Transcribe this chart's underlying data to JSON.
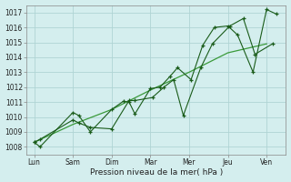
{
  "xlabel": "Pression niveau de la mer( hPa )",
  "background_color": "#d4eeee",
  "plot_bg_color": "#d4eeee",
  "grid_color": "#b0d4d4",
  "ylim": [
    1007.5,
    1017.5
  ],
  "yticks": [
    1008,
    1009,
    1010,
    1011,
    1012,
    1013,
    1014,
    1015,
    1016,
    1017
  ],
  "xtick_labels": [
    "Lun",
    "Sam",
    "Dim",
    "Mar",
    "Mer",
    "Jeu",
    "Ven"
  ],
  "xtick_positions": [
    0,
    1,
    2,
    3,
    4,
    5,
    6
  ],
  "line_color1": "#1a5c1a",
  "line_color2": "#1a5c1a",
  "line_color3": "#3a9a3a",
  "series1_x": [
    0.0,
    0.15,
    1.0,
    1.15,
    1.45,
    2.0,
    2.3,
    2.45,
    2.6,
    3.0,
    3.25,
    3.5,
    3.7,
    4.05,
    4.35,
    4.65,
    5.0,
    5.25,
    5.65,
    6.0,
    6.25
  ],
  "series1_y": [
    1008.3,
    1008.0,
    1010.3,
    1010.1,
    1009.0,
    1010.5,
    1011.05,
    1011.0,
    1010.2,
    1011.9,
    1012.0,
    1012.7,
    1013.3,
    1012.5,
    1014.8,
    1016.0,
    1016.1,
    1015.5,
    1013.0,
    1017.2,
    1016.9
  ],
  "series2_x": [
    0.0,
    0.15,
    1.0,
    1.15,
    1.45,
    2.0,
    2.45,
    2.6,
    3.05,
    3.35,
    3.6,
    3.85,
    4.3,
    4.6,
    5.05,
    5.4,
    5.7,
    6.15
  ],
  "series2_y": [
    1008.3,
    1008.5,
    1009.8,
    1009.6,
    1009.3,
    1009.2,
    1011.1,
    1011.1,
    1011.3,
    1012.0,
    1012.5,
    1010.1,
    1013.3,
    1014.9,
    1016.1,
    1016.6,
    1014.2,
    1014.9
  ],
  "series3_x": [
    0.0,
    1.0,
    2.0,
    3.0,
    4.0,
    5.0,
    6.0
  ],
  "series3_y": [
    1008.3,
    1009.5,
    1010.5,
    1011.8,
    1013.0,
    1014.3,
    1014.9
  ]
}
